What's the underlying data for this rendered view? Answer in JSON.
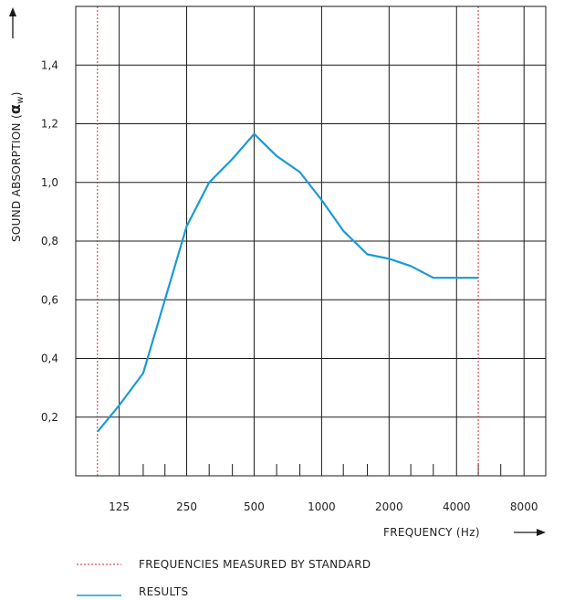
{
  "chart_data": {
    "type": "line",
    "xlabel": "FREQUENCY (Hz)",
    "ylabel": "SOUND ABSORPTION (",
    "ylabel_symbol": "α",
    "ylabel_sub": "w",
    "ylabel_close": ")",
    "x_scale": "log",
    "xlim": [
      80,
      10000
    ],
    "ylim": [
      0,
      1.6
    ],
    "x_ticks": [
      125,
      250,
      500,
      1000,
      2000,
      4000,
      8000
    ],
    "x_tick_labels": [
      "125",
      "250",
      "500",
      "1000",
      "2000",
      "4000",
      "8000"
    ],
    "y_ticks": [
      0.2,
      0.4,
      0.6,
      0.8,
      1.0,
      1.2,
      1.4
    ],
    "y_tick_labels": [
      "0,2",
      "0,4",
      "0,6",
      "0,8",
      "1,0",
      "1,2",
      "1,4"
    ],
    "minor_x_ticks": [
      160,
      200,
      315,
      400,
      630,
      800,
      1250,
      1600,
      2500,
      3150,
      5000,
      6300
    ],
    "grid": true,
    "standard_range": [
      100,
      5000
    ],
    "series": [
      {
        "name": "RESULTS",
        "color": "#1a9ad6",
        "x": [
          100,
          125,
          160,
          200,
          250,
          315,
          400,
          500,
          630,
          800,
          1000,
          1250,
          1600,
          2000,
          2500,
          3150,
          4000,
          5000
        ],
        "y": [
          0.15,
          0.24,
          0.35,
          0.6,
          0.85,
          1.0,
          1.08,
          1.165,
          1.09,
          1.035,
          0.94,
          0.835,
          0.755,
          0.74,
          0.715,
          0.675,
          0.675,
          0.675
        ]
      }
    ],
    "legend": {
      "placement": "bottom-left",
      "entries": [
        {
          "label": "FREQUENCIES MEASURED BY STANDARD",
          "style": "dotted",
          "color": "#d6262b"
        },
        {
          "label": "RESULTS",
          "style": "solid",
          "color": "#1a9ad6"
        }
      ]
    }
  }
}
